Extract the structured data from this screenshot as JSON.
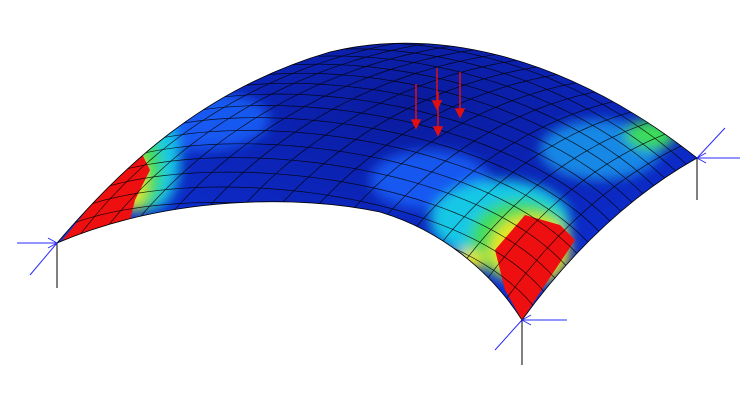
{
  "colors": {
    "background": "#ffffff",
    "shell_low": "#0a1fb0",
    "shell_mid": "#1a66ff",
    "shell_cyan": "#19c8e6",
    "shell_green": "#3cdc5a",
    "shell_yellow": "#e8e61e",
    "shell_high": "#ee1010",
    "mesh": "#000000",
    "support": "#2a2aff",
    "load": "#e01010"
  },
  "supports": [
    "left-corner",
    "front-corner",
    "right-corner"
  ],
  "loads": [
    1,
    2,
    3,
    4
  ]
}
